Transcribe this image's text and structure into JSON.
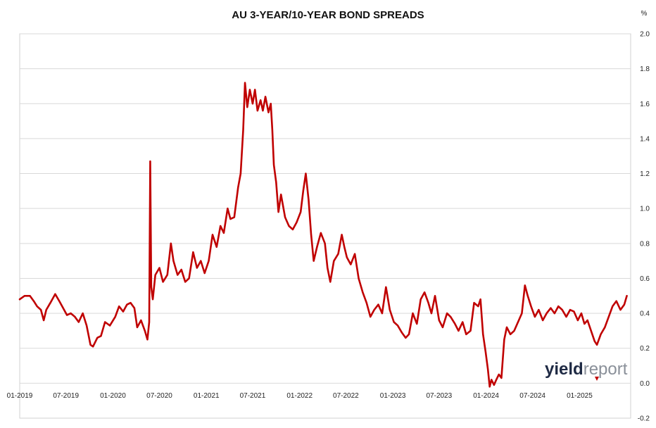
{
  "chart_data": {
    "type": "line",
    "title": "AU 3-YEAR/10-YEAR BOND SPREADS",
    "ylabel": "%",
    "xlabel": "",
    "ylim": [
      -0.2,
      2.0
    ],
    "xlim": [
      "2019-01-01",
      "2025-07-20"
    ],
    "x_ticks": [
      "01-2019",
      "07-2019",
      "01-2020",
      "07-2020",
      "01-2021",
      "07-2021",
      "01-2022",
      "07-2022",
      "01-2023",
      "07-2023",
      "01-2024",
      "07-2024",
      "01-2025"
    ],
    "y_ticks": [
      2.0,
      1.8,
      1.6,
      1.4,
      1.2,
      1.0,
      0.8,
      0.6,
      0.4,
      0.2,
      0.0,
      -0.2
    ],
    "y_tick_labels": [
      "2.0",
      "1.8",
      "1.6",
      "1.4",
      "1.2",
      "1.0",
      "0.8",
      "0.6",
      "0.4",
      "0.2",
      "0.0",
      "-0.2"
    ],
    "grid": true,
    "legend": "none",
    "series": [
      {
        "color": "#c00000",
        "points": [
          [
            "2019-01-01",
            0.48
          ],
          [
            "2019-01-20",
            0.5
          ],
          [
            "2019-02-10",
            0.5
          ],
          [
            "2019-02-25",
            0.47
          ],
          [
            "2019-03-10",
            0.44
          ],
          [
            "2019-03-25",
            0.42
          ],
          [
            "2019-04-05",
            0.36
          ],
          [
            "2019-04-15",
            0.42
          ],
          [
            "2019-05-01",
            0.46
          ],
          [
            "2019-05-20",
            0.51
          ],
          [
            "2019-06-05",
            0.47
          ],
          [
            "2019-06-20",
            0.43
          ],
          [
            "2019-07-05",
            0.39
          ],
          [
            "2019-07-20",
            0.4
          ],
          [
            "2019-08-05",
            0.38
          ],
          [
            "2019-08-20",
            0.35
          ],
          [
            "2019-09-05",
            0.4
          ],
          [
            "2019-09-20",
            0.33
          ],
          [
            "2019-10-05",
            0.22
          ],
          [
            "2019-10-15",
            0.21
          ],
          [
            "2019-11-01",
            0.26
          ],
          [
            "2019-11-15",
            0.27
          ],
          [
            "2019-12-01",
            0.35
          ],
          [
            "2019-12-20",
            0.33
          ],
          [
            "2020-01-10",
            0.38
          ],
          [
            "2020-01-25",
            0.44
          ],
          [
            "2020-02-10",
            0.41
          ],
          [
            "2020-02-25",
            0.45
          ],
          [
            "2020-03-10",
            0.46
          ],
          [
            "2020-03-25",
            0.43
          ],
          [
            "2020-04-05",
            0.32
          ],
          [
            "2020-04-20",
            0.36
          ],
          [
            "2020-05-05",
            0.3
          ],
          [
            "2020-05-15",
            0.25
          ],
          [
            "2020-05-22",
            0.35
          ],
          [
            "2020-05-26",
            1.27
          ],
          [
            "2020-05-30",
            0.55
          ],
          [
            "2020-06-05",
            0.48
          ],
          [
            "2020-06-15",
            0.62
          ],
          [
            "2020-07-01",
            0.66
          ],
          [
            "2020-07-15",
            0.58
          ],
          [
            "2020-08-01",
            0.62
          ],
          [
            "2020-08-15",
            0.8
          ],
          [
            "2020-08-25",
            0.7
          ],
          [
            "2020-09-10",
            0.62
          ],
          [
            "2020-09-25",
            0.65
          ],
          [
            "2020-10-10",
            0.58
          ],
          [
            "2020-10-25",
            0.6
          ],
          [
            "2020-11-10",
            0.75
          ],
          [
            "2020-11-25",
            0.66
          ],
          [
            "2020-12-10",
            0.7
          ],
          [
            "2020-12-25",
            0.63
          ],
          [
            "2021-01-10",
            0.7
          ],
          [
            "2021-01-25",
            0.85
          ],
          [
            "2021-02-10",
            0.78
          ],
          [
            "2021-02-25",
            0.9
          ],
          [
            "2021-03-10",
            0.86
          ],
          [
            "2021-03-25",
            1.0
          ],
          [
            "2021-04-05",
            0.94
          ],
          [
            "2021-04-20",
            0.95
          ],
          [
            "2021-05-05",
            1.12
          ],
          [
            "2021-05-15",
            1.2
          ],
          [
            "2021-05-25",
            1.45
          ],
          [
            "2021-06-01",
            1.72
          ],
          [
            "2021-06-10",
            1.58
          ],
          [
            "2021-06-20",
            1.68
          ],
          [
            "2021-07-01",
            1.6
          ],
          [
            "2021-07-10",
            1.68
          ],
          [
            "2021-07-20",
            1.56
          ],
          [
            "2021-08-01",
            1.62
          ],
          [
            "2021-08-10",
            1.56
          ],
          [
            "2021-08-20",
            1.64
          ],
          [
            "2021-09-01",
            1.55
          ],
          [
            "2021-09-10",
            1.6
          ],
          [
            "2021-09-16",
            1.45
          ],
          [
            "2021-09-22",
            1.25
          ],
          [
            "2021-10-01",
            1.15
          ],
          [
            "2021-10-10",
            0.98
          ],
          [
            "2021-10-20",
            1.08
          ],
          [
            "2021-11-05",
            0.95
          ],
          [
            "2021-11-20",
            0.9
          ],
          [
            "2021-12-05",
            0.88
          ],
          [
            "2021-12-20",
            0.92
          ],
          [
            "2022-01-05",
            0.98
          ],
          [
            "2022-01-15",
            1.1
          ],
          [
            "2022-01-25",
            1.2
          ],
          [
            "2022-02-05",
            1.05
          ],
          [
            "2022-02-15",
            0.85
          ],
          [
            "2022-02-25",
            0.7
          ],
          [
            "2022-03-10",
            0.78
          ],
          [
            "2022-03-25",
            0.86
          ],
          [
            "2022-04-10",
            0.8
          ],
          [
            "2022-04-20",
            0.66
          ],
          [
            "2022-05-01",
            0.58
          ],
          [
            "2022-05-15",
            0.7
          ],
          [
            "2022-06-01",
            0.74
          ],
          [
            "2022-06-15",
            0.85
          ],
          [
            "2022-06-25",
            0.78
          ],
          [
            "2022-07-05",
            0.72
          ],
          [
            "2022-07-20",
            0.68
          ],
          [
            "2022-08-05",
            0.74
          ],
          [
            "2022-08-20",
            0.6
          ],
          [
            "2022-09-05",
            0.52
          ],
          [
            "2022-09-20",
            0.46
          ],
          [
            "2022-10-05",
            0.38
          ],
          [
            "2022-10-20",
            0.42
          ],
          [
            "2022-11-05",
            0.45
          ],
          [
            "2022-11-20",
            0.4
          ],
          [
            "2022-12-05",
            0.55
          ],
          [
            "2022-12-20",
            0.42
          ],
          [
            "2023-01-05",
            0.35
          ],
          [
            "2023-01-20",
            0.33
          ],
          [
            "2023-02-05",
            0.29
          ],
          [
            "2023-02-20",
            0.26
          ],
          [
            "2023-03-05",
            0.28
          ],
          [
            "2023-03-20",
            0.4
          ],
          [
            "2023-04-05",
            0.34
          ],
          [
            "2023-04-20",
            0.48
          ],
          [
            "2023-05-05",
            0.52
          ],
          [
            "2023-05-20",
            0.46
          ],
          [
            "2023-06-01",
            0.4
          ],
          [
            "2023-06-15",
            0.5
          ],
          [
            "2023-07-01",
            0.36
          ],
          [
            "2023-07-15",
            0.32
          ],
          [
            "2023-08-01",
            0.4
          ],
          [
            "2023-08-15",
            0.38
          ],
          [
            "2023-09-01",
            0.34
          ],
          [
            "2023-09-15",
            0.3
          ],
          [
            "2023-10-01",
            0.35
          ],
          [
            "2023-10-15",
            0.28
          ],
          [
            "2023-11-01",
            0.3
          ],
          [
            "2023-11-15",
            0.46
          ],
          [
            "2023-12-01",
            0.44
          ],
          [
            "2023-12-10",
            0.48
          ],
          [
            "2023-12-20",
            0.28
          ],
          [
            "2023-12-30",
            0.18
          ],
          [
            "2024-01-08",
            0.08
          ],
          [
            "2024-01-15",
            -0.02
          ],
          [
            "2024-01-22",
            0.02
          ],
          [
            "2024-02-01",
            -0.01
          ],
          [
            "2024-02-10",
            0.02
          ],
          [
            "2024-02-20",
            0.05
          ],
          [
            "2024-03-01",
            0.03
          ],
          [
            "2024-03-12",
            0.25
          ],
          [
            "2024-03-22",
            0.32
          ],
          [
            "2024-04-05",
            0.28
          ],
          [
            "2024-04-20",
            0.3
          ],
          [
            "2024-05-05",
            0.35
          ],
          [
            "2024-05-20",
            0.4
          ],
          [
            "2024-06-01",
            0.56
          ],
          [
            "2024-06-12",
            0.5
          ],
          [
            "2024-06-25",
            0.44
          ],
          [
            "2024-07-10",
            0.38
          ],
          [
            "2024-07-25",
            0.42
          ],
          [
            "2024-08-10",
            0.36
          ],
          [
            "2024-08-25",
            0.4
          ],
          [
            "2024-09-10",
            0.43
          ],
          [
            "2024-09-25",
            0.4
          ],
          [
            "2024-10-10",
            0.44
          ],
          [
            "2024-10-25",
            0.42
          ],
          [
            "2024-11-10",
            0.38
          ],
          [
            "2024-11-25",
            0.42
          ],
          [
            "2024-12-10",
            0.41
          ],
          [
            "2024-12-25",
            0.36
          ],
          [
            "2025-01-08",
            0.4
          ],
          [
            "2025-01-20",
            0.34
          ],
          [
            "2025-02-01",
            0.36
          ],
          [
            "2025-02-15",
            0.3
          ],
          [
            "2025-03-01",
            0.24
          ],
          [
            "2025-03-10",
            0.22
          ],
          [
            "2025-03-25",
            0.28
          ],
          [
            "2025-04-10",
            0.32
          ],
          [
            "2025-04-25",
            0.38
          ],
          [
            "2025-05-10",
            0.44
          ],
          [
            "2025-05-25",
            0.47
          ],
          [
            "2025-06-10",
            0.42
          ],
          [
            "2025-06-25",
            0.45
          ],
          [
            "2025-07-05",
            0.5
          ]
        ]
      }
    ]
  },
  "logo": {
    "part1": "yield",
    "part2": "report"
  }
}
